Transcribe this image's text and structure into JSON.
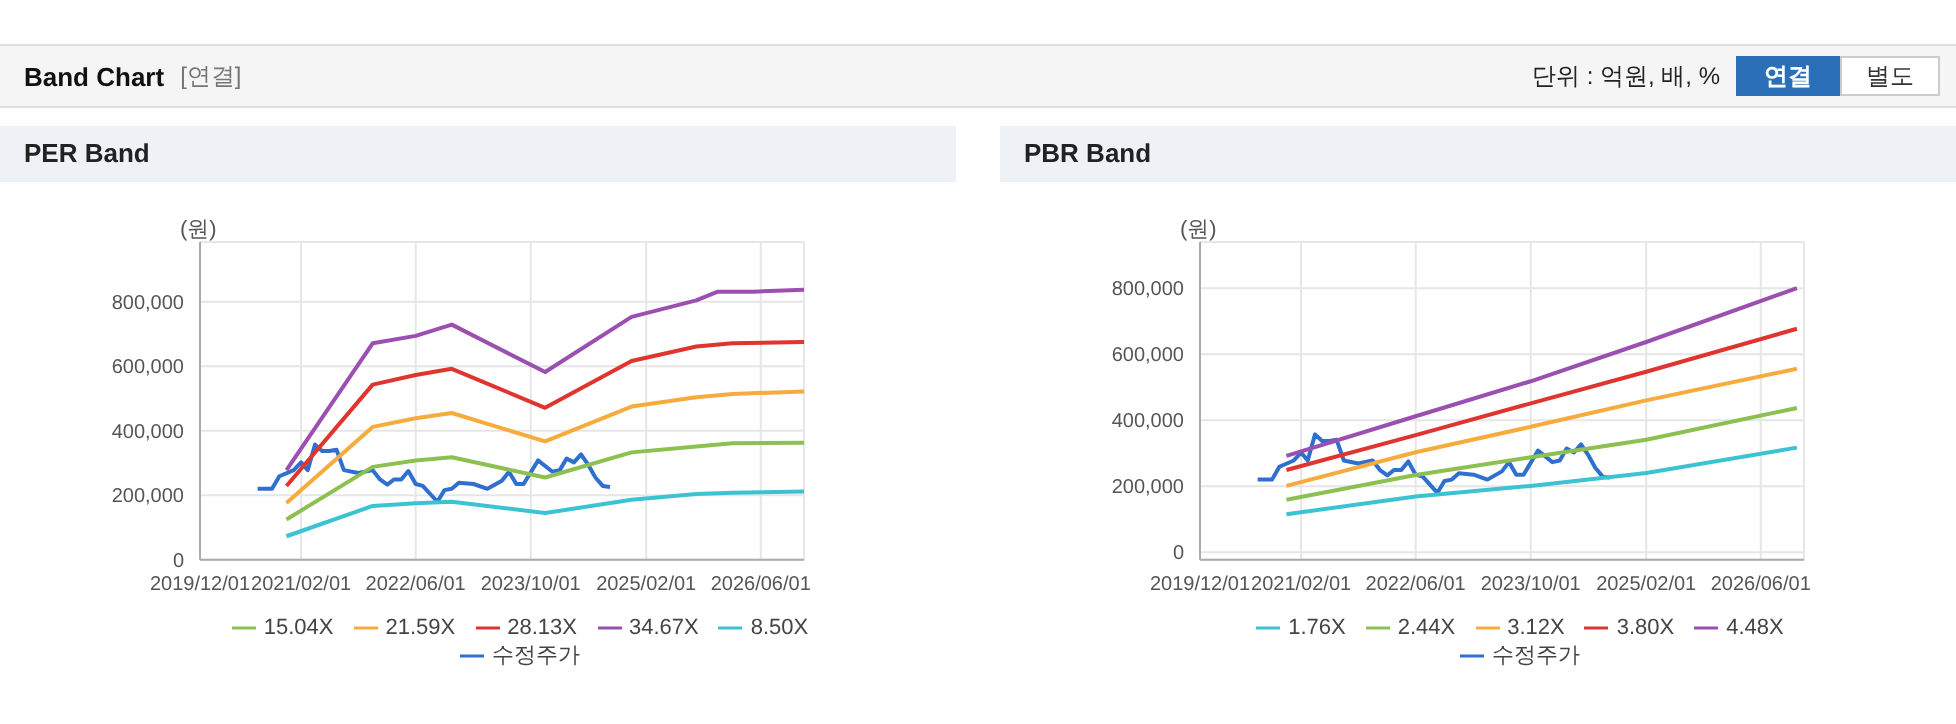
{
  "chart_data": [
    {
      "type": "line",
      "title": "PER Band",
      "ylabel": "(원)",
      "annotations": [
        "Band Chart",
        "[연결]",
        "단위 : 억원, 배, %",
        "연결",
        "별도"
      ],
      "xlim": [
        "2019-12-01",
        "2026-12-01"
      ],
      "xticks": [
        {
          "value": "2019-12-01",
          "label": "2019/12/01"
        },
        {
          "value": "2021-02-01",
          "label": "2021/02/01"
        },
        {
          "value": "2022-06-01",
          "label": "2022/06/01"
        },
        {
          "value": "2023-10-01",
          "label": "2023/10/01"
        },
        {
          "value": "2025-02-01",
          "label": "2025/02/01"
        },
        {
          "value": "2026-06-01",
          "label": "2026/06/01"
        }
      ],
      "ylim": [
        0,
        985000
      ],
      "yticks": [
        0,
        {
          "value": 200000,
          "label": "200,000"
        },
        {
          "value": 400000,
          "label": "400,000"
        },
        {
          "value": 600000,
          "label": "600,000"
        },
        {
          "value": 800000,
          "label": "800,000"
        }
      ],
      "grid": true,
      "legend": "bottom",
      "series": [
        {
          "name": "수정주가",
          "color": "#2f6fd0",
          "x": [
            "2020-08",
            "2020-10",
            "2020-11",
            "2021-01",
            "2021-02",
            "2021-03",
            "2021-04",
            "2021-05",
            "2021-06",
            "2021-07",
            "2021-08",
            "2021-10",
            "2021-12",
            "2022-01",
            "2022-02",
            "2022-03",
            "2022-04",
            "2022-05",
            "2022-06",
            "2022-07",
            "2022-09",
            "2022-10",
            "2022-11",
            "2022-12",
            "2023-02",
            "2023-04",
            "2023-06",
            "2023-07",
            "2023-08",
            "2023-09",
            "2023-11",
            "2024-01",
            "2024-02",
            "2024-03",
            "2024-04",
            "2024-05",
            "2024-06",
            "2024-07",
            "2024-08",
            "2024-09"
          ],
          "values": [
            220000,
            220000,
            259000,
            278000,
            302000,
            278000,
            357000,
            337000,
            337000,
            341000,
            278000,
            269000,
            278000,
            249000,
            233000,
            249000,
            249000,
            275000,
            235000,
            229000,
            180000,
            216000,
            220000,
            239000,
            235000,
            220000,
            245000,
            273000,
            235000,
            235000,
            308000,
            273000,
            278000,
            314000,
            302000,
            327000,
            294000,
            255000,
            229000,
            226000
          ]
        },
        {
          "name": "8.50X",
          "color": "#3cc3d3",
          "x": [
            "2020-12",
            "2021-12",
            "2022-06",
            "2022-11",
            "2023-12",
            "2024-12",
            "2025-09",
            "2026-02",
            "2026-12"
          ],
          "values": [
            73000,
            167000,
            175000,
            180000,
            145000,
            186000,
            204000,
            208000,
            212000
          ]
        },
        {
          "name": "15.04X",
          "color": "#8cc152",
          "x": [
            "2020-12",
            "2021-12",
            "2022-06",
            "2022-11",
            "2023-12",
            "2024-12",
            "2025-09",
            "2026-02",
            "2026-12"
          ],
          "values": [
            125000,
            288000,
            308000,
            318000,
            255000,
            333000,
            351000,
            361000,
            363000
          ]
        },
        {
          "name": "21.59X",
          "color": "#f6ab3c",
          "x": [
            "2020-12",
            "2021-12",
            "2022-06",
            "2022-11",
            "2023-12",
            "2024-12",
            "2025-09",
            "2026-02",
            "2026-12"
          ],
          "values": [
            176000,
            412000,
            439000,
            455000,
            367000,
            475000,
            504000,
            514000,
            522000
          ]
        },
        {
          "name": "28.13X",
          "color": "#e0342e",
          "x": [
            "2020-12",
            "2021-12",
            "2022-06",
            "2022-11",
            "2023-12",
            "2024-12",
            "2025-09",
            "2026-02",
            "2026-12"
          ],
          "values": [
            229000,
            543000,
            573000,
            592000,
            471000,
            616000,
            661000,
            671000,
            675000
          ]
        },
        {
          "name": "34.67X",
          "color": "#9b4fb0",
          "x": [
            "2020-12",
            "2021-12",
            "2022-06",
            "2022-11",
            "2023-12",
            "2024-12",
            "2025-09",
            "2025-12",
            "2026-05",
            "2026-12"
          ],
          "values": [
            278000,
            671000,
            694000,
            729000,
            582000,
            753000,
            804000,
            831000,
            831000,
            837000
          ]
        }
      ]
    },
    {
      "type": "line",
      "title": "PBR Band",
      "ylabel": "(원)",
      "xlim": [
        "2019-12-01",
        "2026-12-01"
      ],
      "xticks": [
        {
          "value": "2019-12-01",
          "label": "2019/12/01"
        },
        {
          "value": "2021-02-01",
          "label": "2021/02/01"
        },
        {
          "value": "2022-06-01",
          "label": "2022/06/01"
        },
        {
          "value": "2023-10-01",
          "label": "2023/10/01"
        },
        {
          "value": "2025-02-01",
          "label": "2025/02/01"
        },
        {
          "value": "2026-06-01",
          "label": "2026/06/01"
        }
      ],
      "ylim": [
        -23000,
        940000
      ],
      "yticks": [
        0,
        {
          "value": 200000,
          "label": "200,000"
        },
        {
          "value": 400000,
          "label": "400,000"
        },
        {
          "value": 600000,
          "label": "600,000"
        },
        {
          "value": 800000,
          "label": "800,000"
        }
      ],
      "grid": true,
      "legend": "bottom",
      "series": [
        {
          "name": "수정주가",
          "color": "#2f6fd0",
          "x": [
            "2020-08",
            "2020-10",
            "2020-11",
            "2021-01",
            "2021-02",
            "2021-03",
            "2021-04",
            "2021-05",
            "2021-06",
            "2021-07",
            "2021-08",
            "2021-10",
            "2021-12",
            "2022-01",
            "2022-02",
            "2022-03",
            "2022-04",
            "2022-05",
            "2022-06",
            "2022-07",
            "2022-09",
            "2022-10",
            "2022-11",
            "2022-12",
            "2023-02",
            "2023-04",
            "2023-06",
            "2023-07",
            "2023-08",
            "2023-09",
            "2023-11",
            "2024-01",
            "2024-02",
            "2024-03",
            "2024-04",
            "2024-05",
            "2024-06",
            "2024-07",
            "2024-08",
            "2024-09"
          ],
          "values": [
            220000,
            220000,
            259000,
            278000,
            302000,
            278000,
            357000,
            337000,
            337000,
            341000,
            278000,
            269000,
            278000,
            249000,
            233000,
            249000,
            249000,
            275000,
            235000,
            229000,
            180000,
            216000,
            220000,
            239000,
            235000,
            220000,
            245000,
            273000,
            235000,
            235000,
            308000,
            273000,
            278000,
            314000,
            302000,
            327000,
            294000,
            255000,
            229000,
            226000
          ]
        },
        {
          "name": "1.76X",
          "color": "#3cc3d3",
          "x": [
            "2020-12",
            "2022-06",
            "2023-10",
            "2025-02",
            "2026-11"
          ],
          "values": [
            115000,
            169000,
            201000,
            240000,
            317000
          ]
        },
        {
          "name": "2.44X",
          "color": "#8cc152",
          "x": [
            "2020-12",
            "2022-06",
            "2023-10",
            "2025-02",
            "2026-11"
          ],
          "values": [
            159000,
            234000,
            288000,
            341000,
            437000
          ]
        },
        {
          "name": "3.12X",
          "color": "#f6ab3c",
          "x": [
            "2020-12",
            "2022-06",
            "2023-10",
            "2025-02",
            "2026-11"
          ],
          "values": [
            201000,
            303000,
            380000,
            460000,
            556000
          ]
        },
        {
          "name": "3.80X",
          "color": "#e0342e",
          "x": [
            "2020-12",
            "2022-06",
            "2023-10",
            "2025-02",
            "2026-11"
          ],
          "values": [
            249000,
            355000,
            451000,
            547000,
            677000
          ]
        },
        {
          "name": "4.48X",
          "color": "#9b4fb0",
          "x": [
            "2020-12",
            "2022-06",
            "2023-10",
            "2025-02",
            "2026-11"
          ],
          "values": [
            292000,
            412000,
            518000,
            637000,
            800000
          ]
        }
      ]
    }
  ]
}
